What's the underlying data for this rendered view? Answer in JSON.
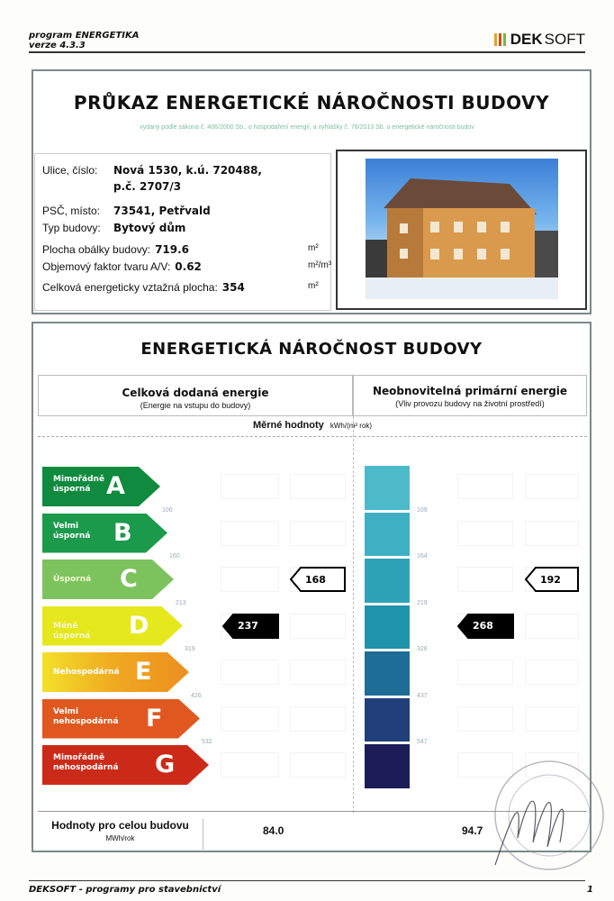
{
  "header": {
    "program": "program ENERGETIKA",
    "version": "verze 4.3.3",
    "logo_bold": "DEK",
    "logo_light": "SOFT",
    "logo_colors": [
      "#e8a21a",
      "#d6491b",
      "#7cb342"
    ]
  },
  "certificate": {
    "title": "PRŮKAZ ENERGETICKÉ NÁROČNOSTI BUDOVY",
    "subtitle": "vydaný podle zákona č. 406/2000 Sb., o hospodaření energií, a vyhlášky č. 78/2013 Sb. o energetické náročnosti budov",
    "info": [
      {
        "label": "Ulice, číslo:",
        "value": "Nová 1530, k.ú. 720488,"
      },
      {
        "label": "",
        "value": "p.č. 2707/3"
      },
      {
        "label": "PSČ, místo:",
        "value": "73541, Petřvald"
      },
      {
        "label": "Typ budovy:",
        "value": "Bytový dům"
      },
      {
        "label": "Plocha obálky budovy:",
        "value": "719.6",
        "unit": "m²"
      },
      {
        "label": "Objemový faktor tvaru A/V:",
        "value": "0.62",
        "unit": "m²/m³"
      },
      {
        "label": "Celková energeticky vztažná plocha:",
        "value": "354",
        "unit": "m²"
      }
    ]
  },
  "rating": {
    "title": "ENERGETICKÁ NÁROČNOST BUDOVY",
    "left_head": "Celková dodaná energie",
    "left_sub": "(Energie na vstupu do budovy)",
    "right_head": "Neobnovitelná primární energie",
    "right_sub": "(Vliv provozu budovy na životní prostředí)",
    "specific_label": "Měrné hodnoty",
    "specific_unit": "kWh/(m² rok)",
    "classes": [
      {
        "letter": "A",
        "label": "Mimořádně úsporná",
        "color": "#0f8a3e"
      },
      {
        "letter": "B",
        "label": "Velmi úsporná",
        "color": "#1c9a4c"
      },
      {
        "letter": "C",
        "label": "Úsporná",
        "color": "#7cc35e"
      },
      {
        "letter": "D",
        "label": "Méně úsporná",
        "color": "#e6e81e"
      },
      {
        "letter": "E",
        "label": "Nehospodárná",
        "color": "#f0a822"
      },
      {
        "letter": "F",
        "label": "Velmi nehospodárná",
        "color": "#e0581f"
      },
      {
        "letter": "G",
        "label": "Mimořádně nehospodárná",
        "color": "#cc2a18"
      }
    ],
    "left_thresholds": [
      "106",
      "160",
      "213",
      "319",
      "426",
      "532"
    ],
    "right_thresholds": [
      "109",
      "164",
      "219",
      "328",
      "437",
      "547"
    ],
    "right_colors": [
      "#4dbac9",
      "#3fb0c4",
      "#2ea3b8",
      "#1f93aa",
      "#1d6d96",
      "#213f78",
      "#1b1c58"
    ],
    "left_reference": {
      "value": "168",
      "class": "C"
    },
    "left_actual": {
      "value": "237",
      "class": "D"
    },
    "right_reference": {
      "value": "192",
      "class": "C"
    },
    "right_actual": {
      "value": "268",
      "class": "D"
    },
    "total_label": "Hodnoty pro celou budovu",
    "total_unit": "MWh/rok",
    "total_left": "84.0",
    "total_right": "94.7"
  },
  "footer": {
    "text": "DEKSOFT - programy pro stavebnictví",
    "page": "1"
  }
}
